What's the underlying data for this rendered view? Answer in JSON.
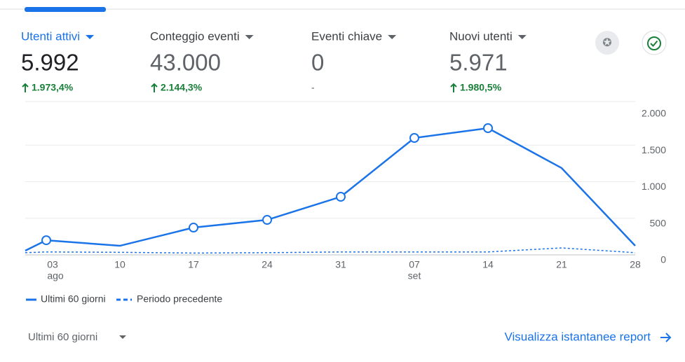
{
  "metrics": [
    {
      "label": "Utenti attivi",
      "value": "5.992",
      "change": "1.973,4%"
    },
    {
      "label": "Conteggio eventi",
      "value": "43.000",
      "change": "2.144,3%"
    },
    {
      "label": "Eventi chiave",
      "value": "0",
      "change": "-"
    },
    {
      "label": "Nuovi utenti",
      "value": "5.971",
      "change": "1.980,5%"
    }
  ],
  "chart_data": {
    "type": "line",
    "categories": [
      null,
      "03",
      "10",
      "17",
      "24",
      "31",
      "07",
      "14",
      "21",
      "28"
    ],
    "x_sublabels": [
      null,
      "ago",
      null,
      null,
      null,
      null,
      "set",
      null,
      null,
      null
    ],
    "series": [
      {
        "name": "Ultimi 60 giorni",
        "color": "#1a73e8",
        "dashed": false,
        "markers": [
          false,
          true,
          false,
          true,
          true,
          true,
          true,
          true,
          false,
          false
        ],
        "values": [
          57,
          200,
          124,
          373,
          478,
          794,
          1598,
          1732,
          1187,
          124
        ]
      },
      {
        "name": "Periodo precedente",
        "color": "#1a73e8",
        "dashed": true,
        "markers": [
          false,
          false,
          false,
          false,
          false,
          false,
          false,
          false,
          false,
          false
        ],
        "values": [
          30,
          40,
          35,
          25,
          30,
          40,
          40,
          40,
          95,
          30
        ]
      }
    ],
    "ylim": [
      0,
      2000
    ],
    "yticks": [
      0,
      500,
      {
        "value": 1000,
        "label": "1.000"
      },
      {
        "value": 1500,
        "label": "1.500"
      },
      {
        "value": 2000,
        "label": "2.000"
      }
    ],
    "grid": true
  },
  "footer": {
    "range": "Ultimi 60 giorni",
    "link": "Visualizza istantanee report"
  }
}
